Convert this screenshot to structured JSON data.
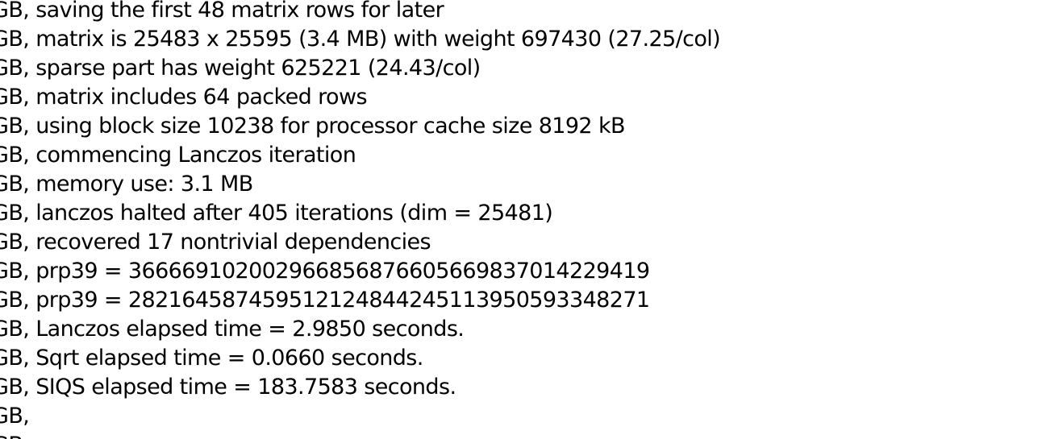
{
  "log": {
    "lines": [
      "GB, saving the first 48 matrix rows for later",
      "GB, matrix is 25483 x 25595 (3.4 MB) with weight 697430 (27.25/col)",
      "GB, sparse part has weight 625221 (24.43/col)",
      "GB, matrix includes 64 packed rows",
      "GB, using block size 10238 for processor cache size 8192 kB",
      "GB, commencing Lanczos iteration",
      "GB, memory use: 3.1 MB",
      "GB, lanczos halted after 405 iterations (dim = 25481)",
      "GB, recovered 17 nontrivial dependencies",
      "GB, prp39 = 366669102002966856876605669837014229419",
      "GB, prp39 = 282164587459512124844245113950593348271",
      "GB, Lanczos elapsed time = 2.9850 seconds.",
      "GB, Sqrt elapsed time = 0.0660 seconds.",
      "GB, SIQS elapsed time = 183.7583 seconds.",
      "GB,",
      "GB"
    ]
  }
}
